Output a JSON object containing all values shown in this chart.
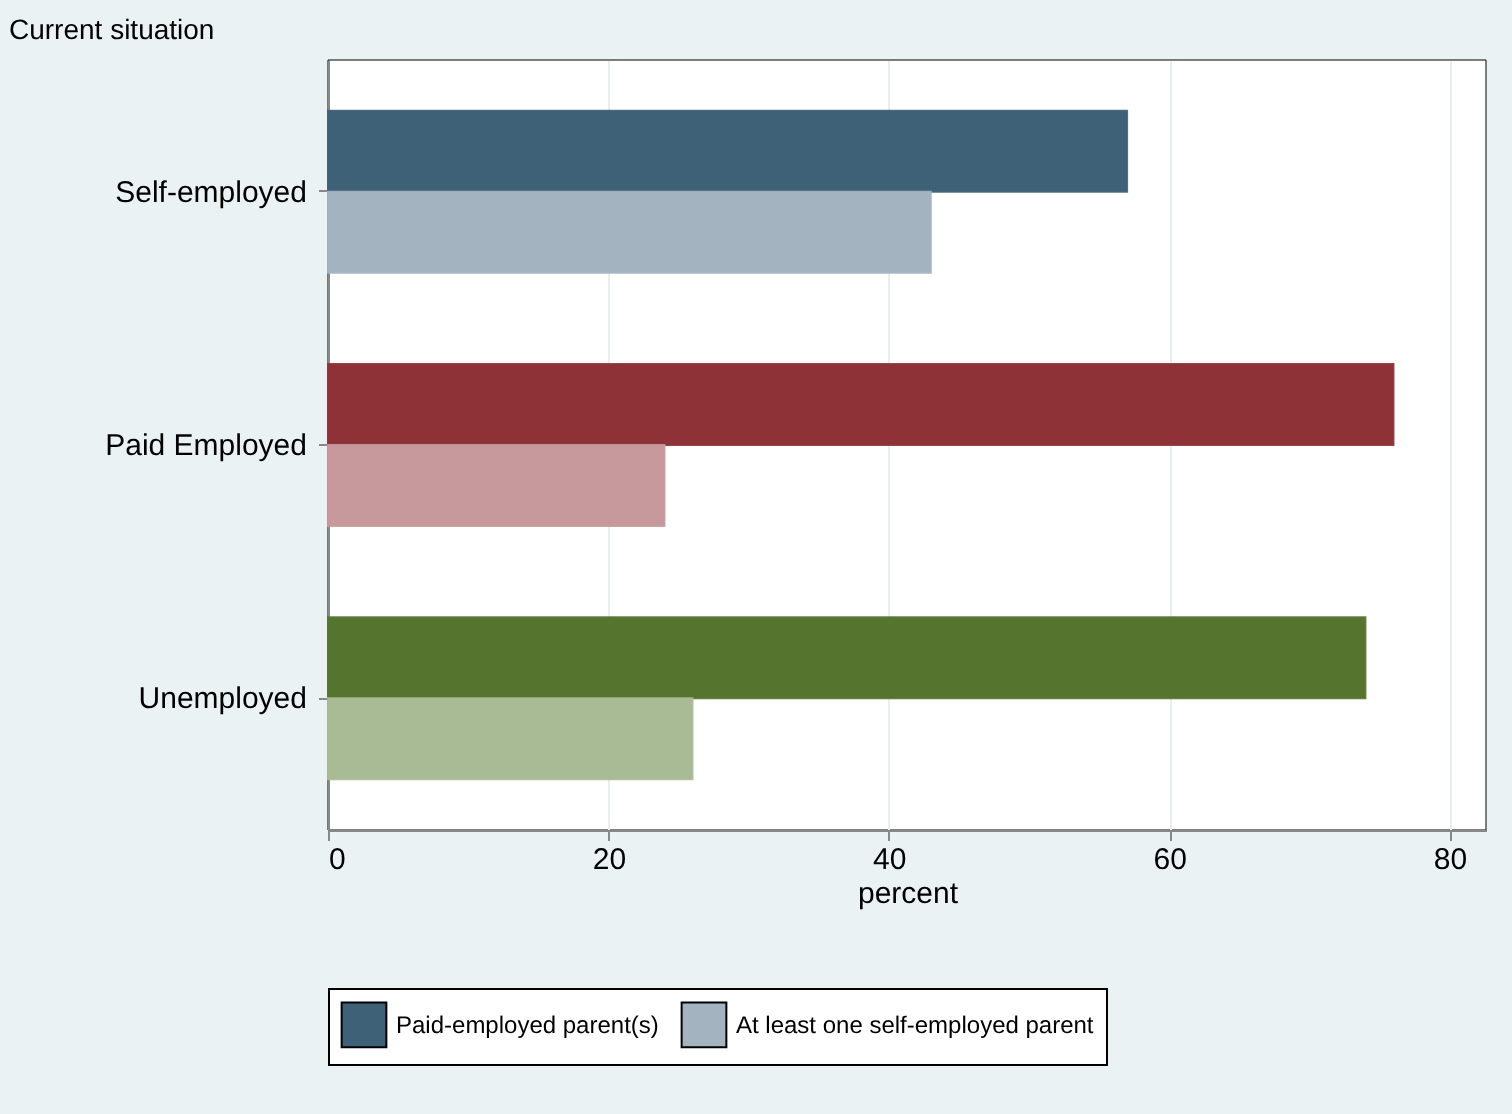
{
  "chart_data": {
    "type": "bar",
    "orientation": "horizontal",
    "ylabel": "Current situation",
    "xlabel": "percent",
    "categories": [
      "Self-employed",
      "Paid Employed",
      "Unemployed"
    ],
    "series": [
      {
        "name": "Paid-employed parent(s)",
        "color": "#3e6178",
        "colors": [
          "#3e6178",
          "#8e3237",
          "#55752f"
        ],
        "values": [
          57,
          76,
          74
        ]
      },
      {
        "name": "At least one self-employed parent",
        "color": "#a3b4c0",
        "colors": [
          "#a3b4c0",
          "#c7999c",
          "#a9bb95"
        ],
        "values": [
          43,
          24,
          26
        ]
      }
    ],
    "xlim": [
      0,
      82.6
    ],
    "xticks": [
      0,
      20,
      40,
      60,
      80
    ],
    "grid": "x",
    "legend": "bottom"
  }
}
